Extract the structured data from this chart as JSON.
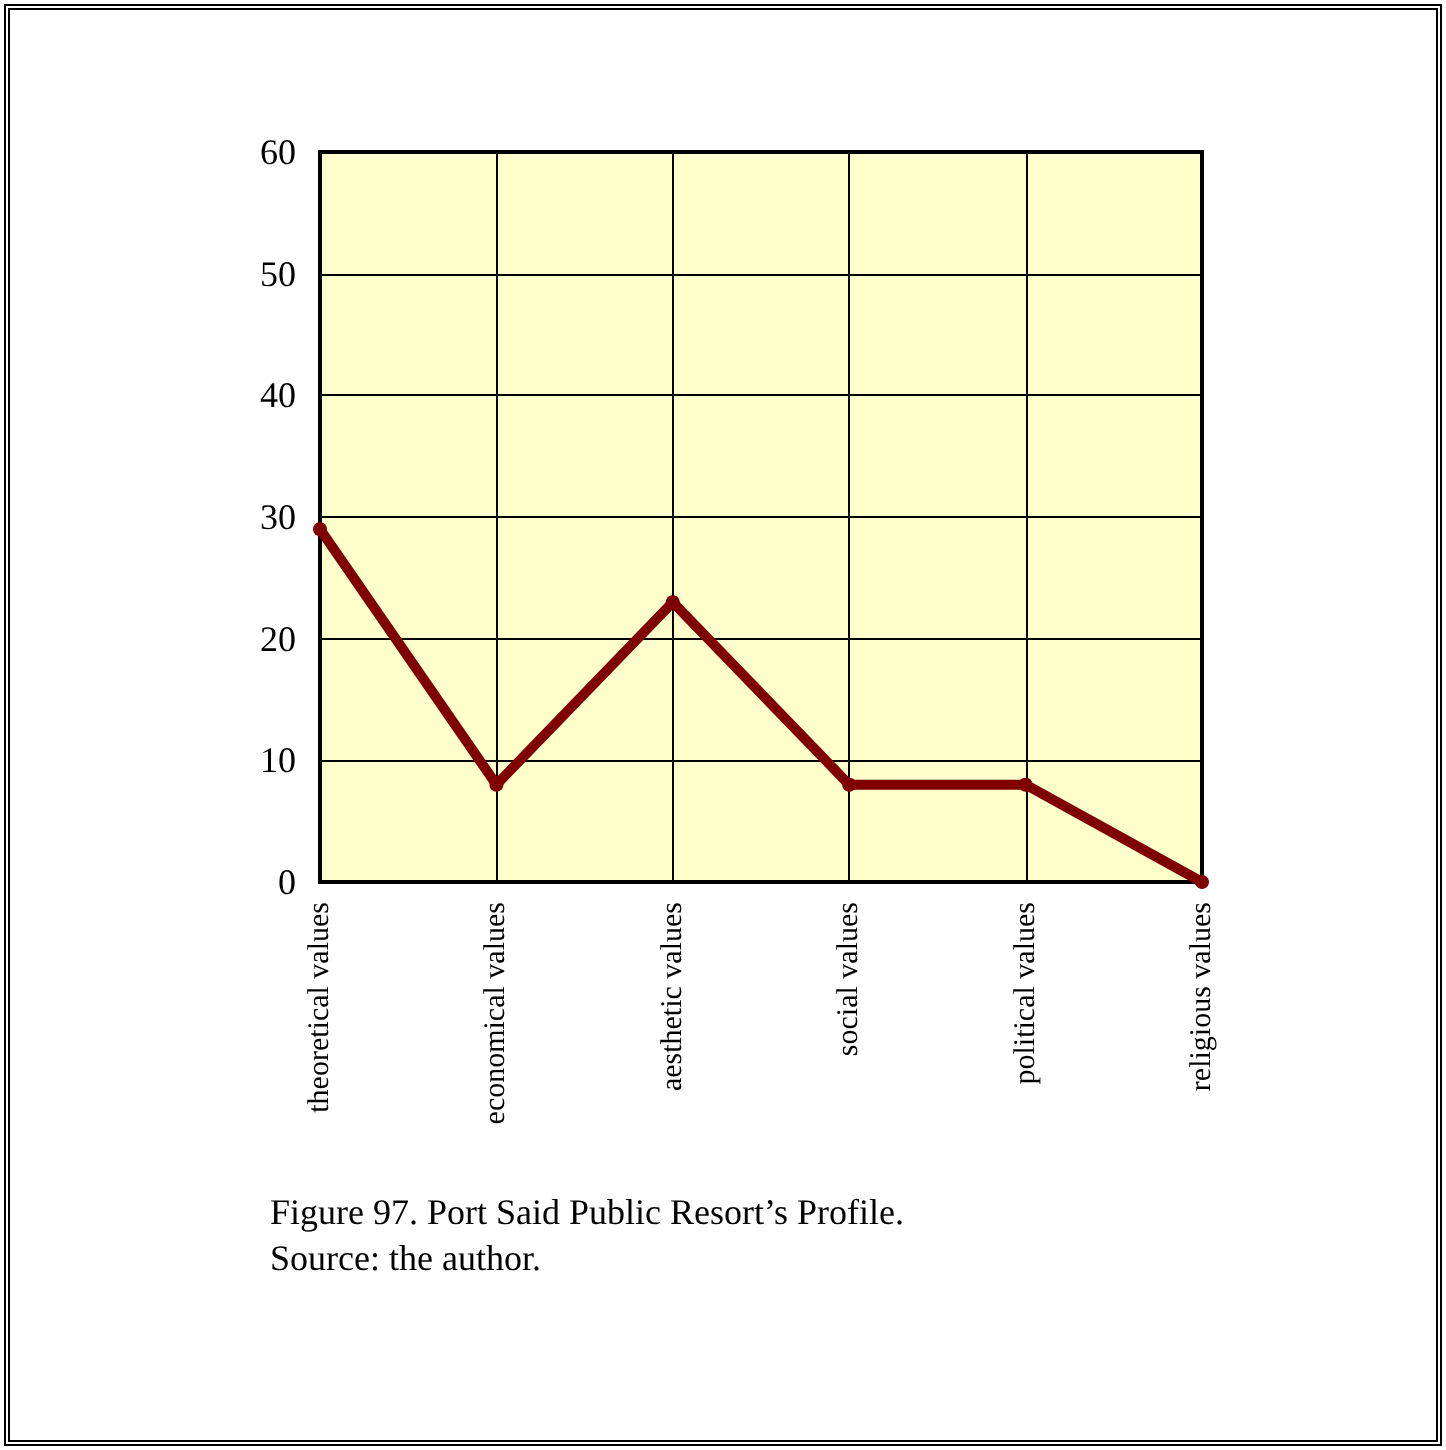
{
  "chart_data": {
    "type": "line",
    "categories": [
      "theoretical values",
      "economical values",
      "aesthetic values",
      "social values",
      "political values",
      "religious values"
    ],
    "series": [
      {
        "color": "#800000",
        "values": [
          29,
          8,
          23,
          8,
          8,
          0
        ]
      }
    ],
    "ylim": [
      0,
      60
    ],
    "yticks": [
      0,
      10,
      20,
      30,
      40,
      50,
      60
    ],
    "grid": true,
    "marker": "circle",
    "line_style": "solid",
    "annotations": [
      "Figure 97. Port Said Public Resort’s Profile.",
      "Source: the author."
    ]
  }
}
